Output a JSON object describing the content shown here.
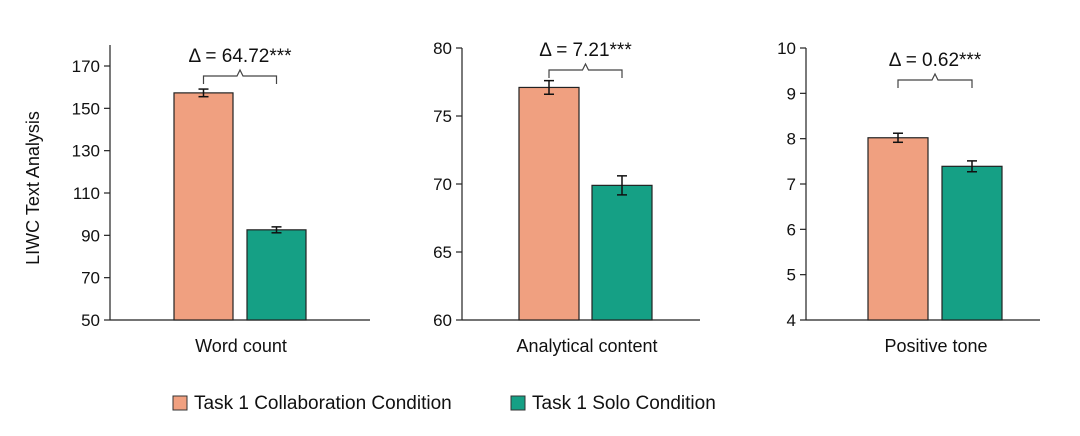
{
  "figure": {
    "ylabel": "LIWC Text Analysis",
    "legend": [
      "Task 1 Collaboration Condition",
      "Task 1 Solo Condition"
    ],
    "colors": {
      "collab": "#f0a080",
      "solo": "#15a085",
      "collab_stroke": "#222222",
      "solo_stroke": "#222222"
    }
  },
  "chart_data": [
    {
      "type": "bar",
      "xlabel": "Word count",
      "categories": [
        "Word count"
      ],
      "series": [
        {
          "name": "Task 1 Collaboration Condition",
          "values": [
            157.3
          ],
          "error": [
            1.8
          ]
        },
        {
          "name": "Task 1 Solo Condition",
          "values": [
            92.6
          ],
          "error": [
            1.4
          ]
        }
      ],
      "ylim": [
        50,
        180
      ],
      "yticks": [
        "50",
        "70",
        "90",
        "110",
        "130",
        "150",
        "170"
      ],
      "annotation": "Δ = 64.72***"
    },
    {
      "type": "bar",
      "xlabel": "Analytical content",
      "categories": [
        "Analytical content"
      ],
      "series": [
        {
          "name": "Task 1 Collaboration Condition",
          "values": [
            77.1
          ],
          "error": [
            0.5
          ]
        },
        {
          "name": "Task 1 Solo Condition",
          "values": [
            69.9
          ],
          "error": [
            0.7
          ]
        }
      ],
      "ylim": [
        60,
        80
      ],
      "yticks": [
        "60",
        "65",
        "70",
        "75",
        "80"
      ],
      "annotation": "Δ = 7.21***"
    },
    {
      "type": "bar",
      "xlabel": "Positive tone",
      "categories": [
        "Positive tone"
      ],
      "series": [
        {
          "name": "Task 1 Collaboration Condition",
          "values": [
            8.02
          ],
          "error": [
            0.1
          ]
        },
        {
          "name": "Task 1 Solo Condition",
          "values": [
            7.39
          ],
          "error": [
            0.12
          ]
        }
      ],
      "ylim": [
        4,
        10
      ],
      "yticks": [
        "4",
        "5",
        "6",
        "7",
        "8",
        "9",
        "10"
      ],
      "annotation": "Δ = 0.62***"
    }
  ]
}
